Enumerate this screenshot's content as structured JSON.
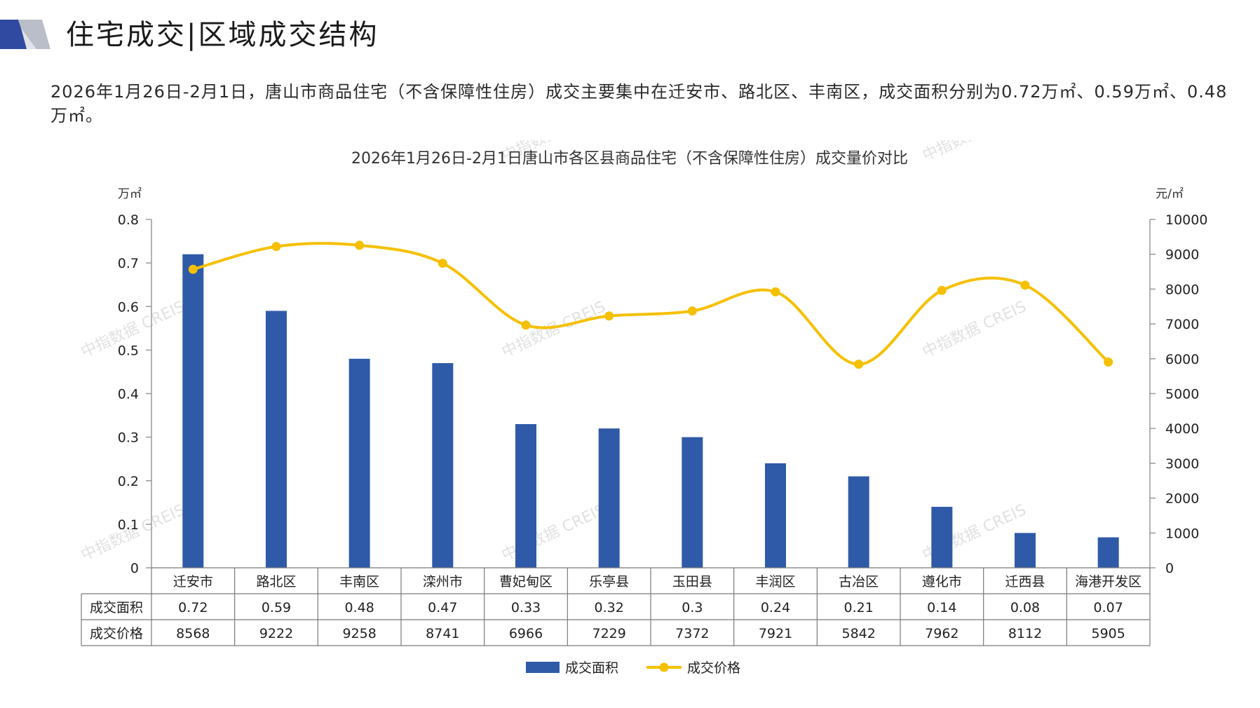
{
  "header": {
    "title": "住宅成交|区域成交结构"
  },
  "intro": {
    "text": "2026年1月26日-2月1日，唐山市商品住宅（不含保障性住房）成交主要集中在迁安市、路北区、丰南区，成交面积分别为0.72万㎡、0.59万㎡、0.48万㎡。"
  },
  "watermark": "中指数据 CREIS",
  "colors": {
    "bar": "#2f5aa8",
    "line": "#f5c000",
    "axis": "#9a9a9a",
    "grid": "#7a7a7a"
  },
  "chart_data": {
    "type": "bar",
    "title": "2026年1月26日-2月1日唐山市各区县商品住宅（不含保障性住房）成交量价对比",
    "categories": [
      "迁安市",
      "路北区",
      "丰南区",
      "滦州市",
      "曹妃甸区",
      "乐亭县",
      "玉田县",
      "丰润区",
      "古冶区",
      "遵化市",
      "迁西县",
      "海港开发区"
    ],
    "series": [
      {
        "name": "成交面积",
        "type": "bar",
        "axis": "left",
        "values": [
          0.72,
          0.59,
          0.48,
          0.47,
          0.33,
          0.32,
          0.3,
          0.24,
          0.21,
          0.14,
          0.08,
          0.07
        ]
      },
      {
        "name": "成交价格",
        "type": "line",
        "axis": "right",
        "values": [
          8568,
          9222,
          9258,
          8741,
          6966,
          7229,
          7372,
          7921,
          5842,
          7962,
          8112,
          5905
        ]
      }
    ],
    "table_values": {
      "成交面积": [
        "0.72",
        "0.59",
        "0.48",
        "0.47",
        "0.33",
        "0.32",
        "0.3",
        "0.24",
        "0.21",
        "0.14",
        "0.08",
        "0.07"
      ],
      "成交价格": [
        "8568",
        "9222",
        "9258",
        "8741",
        "6966",
        "7229",
        "7372",
        "7921",
        "5842",
        "7962",
        "8112",
        "5905"
      ]
    },
    "y_left": {
      "unit": "万㎡",
      "ticks": [
        "0.8",
        "0.7",
        "0.6",
        "0.5",
        "0.4",
        "0.3",
        "0.2",
        "0.1",
        "0"
      ],
      "range": [
        0,
        0.8
      ]
    },
    "y_right": {
      "unit": "元/㎡",
      "ticks": [
        "10000",
        "9000",
        "8000",
        "7000",
        "6000",
        "5000",
        "4000",
        "3000",
        "2000",
        "1000",
        "0"
      ],
      "range": [
        0,
        10000
      ]
    },
    "legend": {
      "placement": "bottom-center"
    },
    "grid": false
  }
}
